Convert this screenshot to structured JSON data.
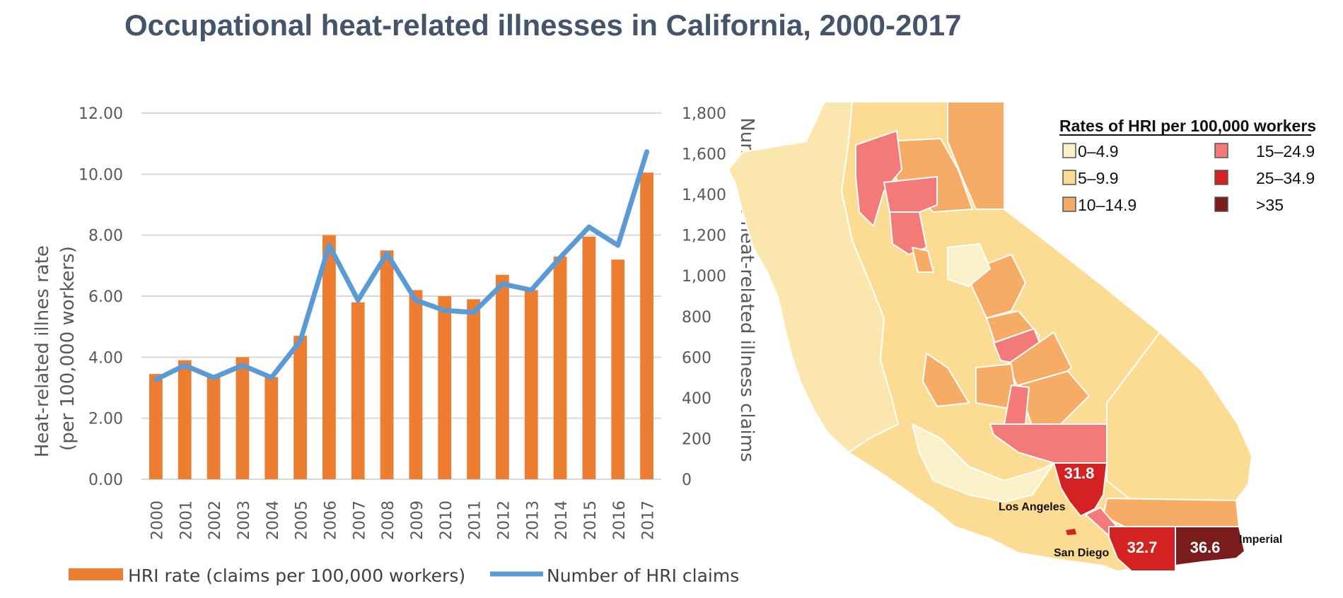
{
  "title": "Occupational heat-related illnesses in California, 2000-2017",
  "chart_data": {
    "type": "bar",
    "categories": [
      "2000",
      "2001",
      "2002",
      "2003",
      "2004",
      "2005",
      "2006",
      "2007",
      "2008",
      "2009",
      "2010",
      "2011",
      "2012",
      "2013",
      "2014",
      "2015",
      "2016",
      "2017"
    ],
    "series": [
      {
        "name": "HRI rate (claims per 100,000 workers)",
        "type": "bar",
        "axis": "left",
        "color": "#ed7d31",
        "values": [
          3.45,
          3.9,
          3.35,
          4.0,
          3.35,
          4.7,
          8.0,
          5.8,
          7.5,
          6.2,
          6.0,
          5.9,
          6.7,
          6.2,
          7.3,
          7.95,
          7.2,
          10.05
        ]
      },
      {
        "name": "Number of HRI claims",
        "type": "line",
        "axis": "right",
        "color": "#5b9bd5",
        "values": [
          490,
          560,
          500,
          560,
          500,
          680,
          1150,
          880,
          1110,
          880,
          830,
          820,
          960,
          930,
          1090,
          1240,
          1150,
          1610
        ]
      }
    ],
    "ylabel": "Heat-related illnes rate\n(per 100,000 workers)",
    "ylabel_lines": [
      "Heat-related illnes rate",
      "(per 100,000 workers)"
    ],
    "y2label": "Number of heat-related illness claims",
    "ylim": [
      0,
      12
    ],
    "y2lim": [
      0,
      1800
    ],
    "y_ticks": [
      "0.00",
      "2.00",
      "4.00",
      "6.00",
      "8.00",
      "10.00",
      "12.00"
    ],
    "y2_ticks": [
      "0",
      "200",
      "400",
      "600",
      "800",
      "1,000",
      "1,200",
      "1,400",
      "1,600",
      "1,800"
    ],
    "grid": true,
    "legend_position": "bottom"
  },
  "map": {
    "legend_title": "Rates of HRI per 100,000 workers",
    "legend": [
      {
        "label": "0–4.9",
        "color": "#fbf1c8"
      },
      {
        "label": "5–9.9",
        "color": "#fcdb92"
      },
      {
        "label": "10–14.9",
        "color": "#f7ac66"
      },
      {
        "label": "15–24.9",
        "color": "#f47a7a"
      },
      {
        "label": "25–34.9",
        "color": "#d42121"
      },
      {
        "label": ">35",
        "color": "#7a1c1c"
      }
    ],
    "labels": {
      "los_angeles": "Los Angeles",
      "san_diego": "San Diego",
      "imperial": "Imperial"
    },
    "values": {
      "los_angeles": "31.8",
      "san_diego": "32.7",
      "imperial": "36.6"
    }
  }
}
